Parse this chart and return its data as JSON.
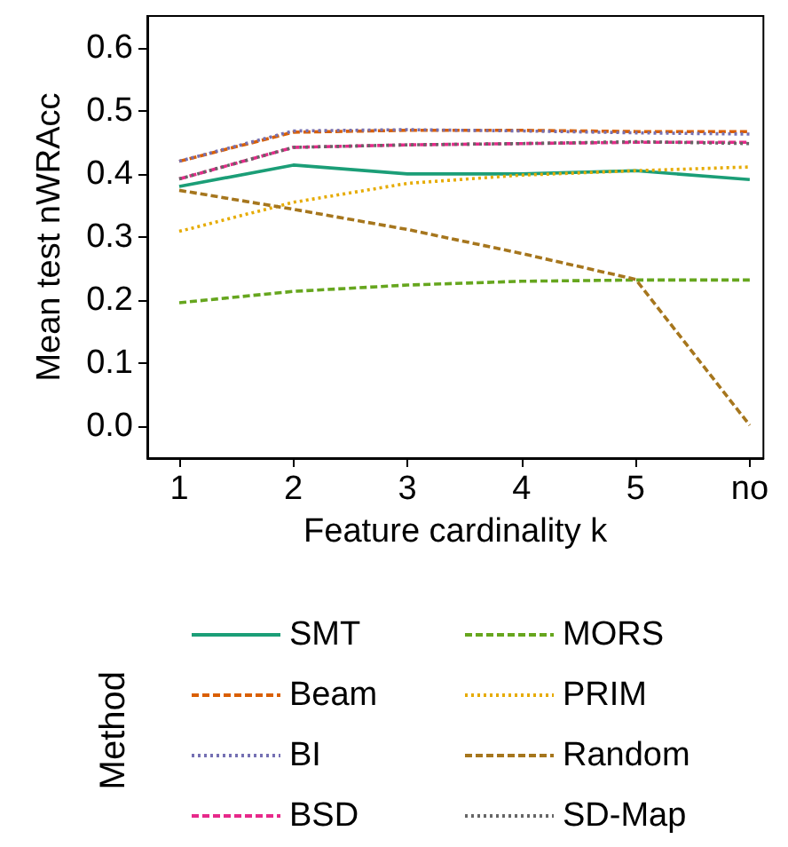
{
  "chart_data": {
    "type": "line",
    "xlabel": "Feature cardinality k",
    "ylabel": "Mean test nWRAcc",
    "legend_title": "Method",
    "legend": "bottom",
    "grid": false,
    "marker": "none",
    "categories": [
      "1",
      "2",
      "3",
      "4",
      "5",
      "no"
    ],
    "ylim": [
      -0.05,
      0.65
    ],
    "yticks": [
      {
        "value": 0,
        "label": "0.0"
      },
      {
        "value": 0.1,
        "label": "0.1"
      },
      {
        "value": 0.2,
        "label": "0.2"
      },
      {
        "value": 0.3,
        "label": "0.3"
      },
      {
        "value": 0.4,
        "label": "0.4"
      },
      {
        "value": 0.5,
        "label": "0.5"
      },
      {
        "value": 0.6,
        "label": "0.6"
      }
    ],
    "series": [
      {
        "name": "SMT",
        "color": "#1b9e77",
        "line_style": "solid",
        "values": [
          0.38,
          0.414,
          0.4,
          0.4,
          0.405,
          0.391
        ]
      },
      {
        "name": "Beam",
        "color": "#d95f02",
        "line_style": "dashed",
        "values": [
          0.42,
          0.466,
          0.469,
          0.469,
          0.467,
          0.467
        ]
      },
      {
        "name": "BI",
        "color": "#7570b3",
        "line_style": "dotted",
        "values": [
          0.42,
          0.468,
          0.47,
          0.468,
          0.465,
          0.463
        ]
      },
      {
        "name": "BSD",
        "color": "#e7298a",
        "line_style": "dashed",
        "values": [
          0.392,
          0.442,
          0.446,
          0.448,
          0.45,
          0.45
        ]
      },
      {
        "name": "MORS",
        "color": "#66a61e",
        "line_style": "dashed",
        "values": [
          0.196,
          0.214,
          0.224,
          0.23,
          0.232,
          0.232
        ]
      },
      {
        "name": "PRIM",
        "color": "#e6ab02",
        "line_style": "dotted",
        "values": [
          0.309,
          0.355,
          0.385,
          0.398,
          0.405,
          0.411
        ]
      },
      {
        "name": "Random",
        "color": "#a6761d",
        "line_style": "dashed",
        "values": [
          0.374,
          0.344,
          0.312,
          0.274,
          0.233,
          0.002
        ]
      },
      {
        "name": "SD-Map",
        "color": "#666666",
        "line_style": "dotted",
        "values": [
          0.392,
          0.442,
          0.446,
          0.448,
          0.451,
          0.448
        ]
      }
    ]
  }
}
